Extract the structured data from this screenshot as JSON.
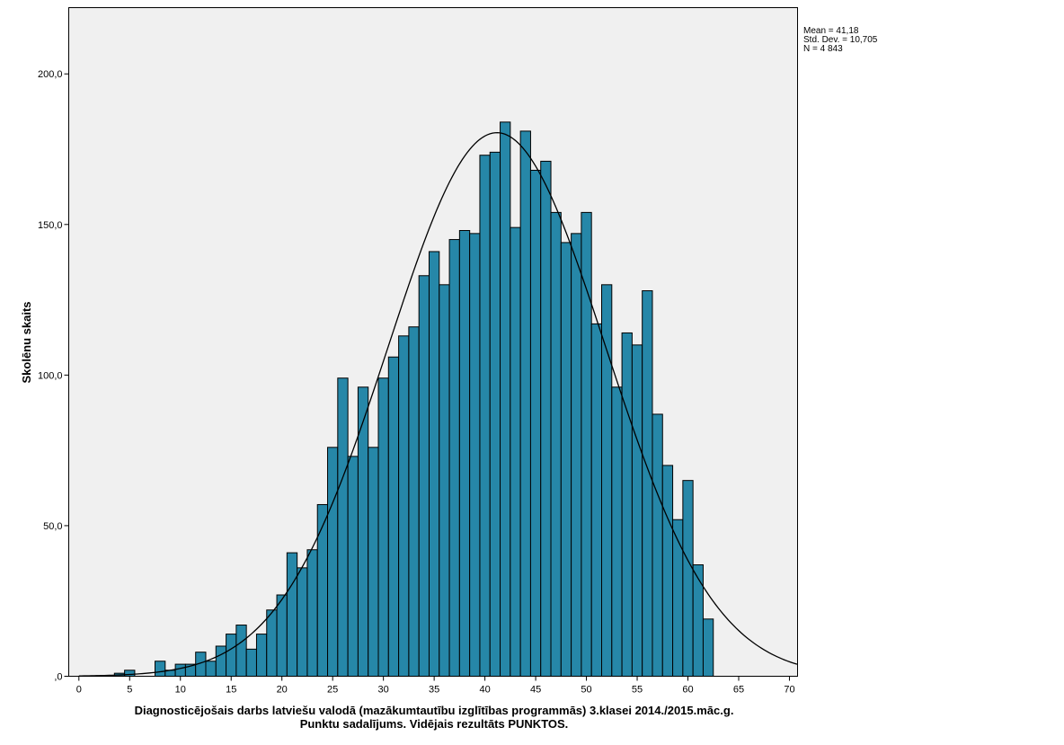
{
  "chart_data": {
    "type": "histogram",
    "xlabel": "Diagnosticējošais darbs latviešu valodā (mazākumtautību izglītības programmās) 3.klasei 2014./2015.māc.g.",
    "xlabel_line2": "Punktu sadalījums. Vidējais rezultāts PUNKTOS.",
    "ylabel": "Skolēnu skaits",
    "xlim": [
      -1,
      70.8
    ],
    "ylim": [
      0,
      222
    ],
    "x_ticks": [
      0,
      5,
      10,
      15,
      20,
      25,
      30,
      35,
      40,
      45,
      50,
      55,
      60,
      65,
      70
    ],
    "x_tick_labels": [
      "0",
      "5",
      "10",
      "15",
      "20",
      "25",
      "30",
      "35",
      "40",
      "45",
      "50",
      "55",
      "60",
      "65",
      "70"
    ],
    "y_ticks": [
      0,
      50,
      100,
      150,
      200
    ],
    "y_tick_labels": [
      ",0",
      "50,0",
      "100,0",
      "150,0",
      "200,0"
    ],
    "bin_width": 1,
    "bin_starts": [
      3.5,
      4.5,
      5.5,
      6.5,
      7.5,
      8.5,
      9.5,
      10.5,
      11.5,
      12.5,
      13.5,
      14.5,
      15.5,
      16.5,
      17.5,
      18.5,
      19.5,
      20.5,
      21.5,
      22.5,
      23.5,
      24.5,
      25.5,
      26.5,
      27.5,
      28.5,
      29.5,
      30.5,
      31.5,
      32.5,
      33.5,
      34.5,
      35.5,
      36.5,
      37.5,
      38.5,
      39.5,
      40.5,
      41.5,
      42.5,
      43.5,
      44.5,
      45.5,
      46.5,
      47.5,
      48.5,
      49.5,
      50.5,
      51.5,
      52.5,
      53.5,
      54.5,
      55.5,
      56.5,
      57.5,
      58.5,
      59.5,
      60.5,
      61.5
    ],
    "counts": [
      1,
      2,
      0,
      0,
      5,
      2,
      4,
      4,
      8,
      5,
      10,
      14,
      17,
      9,
      14,
      22,
      27,
      41,
      36,
      42,
      57,
      76,
      99,
      73,
      96,
      76,
      99,
      106,
      113,
      116,
      133,
      141,
      130,
      145,
      148,
      147,
      173,
      174,
      184,
      149,
      181,
      168,
      171,
      154,
      144,
      147,
      154,
      117,
      130,
      96,
      114,
      110,
      128,
      87,
      70,
      52,
      65,
      37,
      19
    ],
    "normal_curve": {
      "mean": 41.18,
      "std": 10.705,
      "n": 4843
    },
    "stats_box": {
      "mean_label": "Mean = 41,18",
      "std_label": "Std. Dev. = 10,705",
      "n_label": "N = 4 843"
    },
    "colors": {
      "bar_fill": "#2687A8",
      "bar_stroke": "#000000",
      "plot_bg": "#F0F0F0",
      "curve": "#000000"
    },
    "grid": false,
    "legend": "none"
  }
}
